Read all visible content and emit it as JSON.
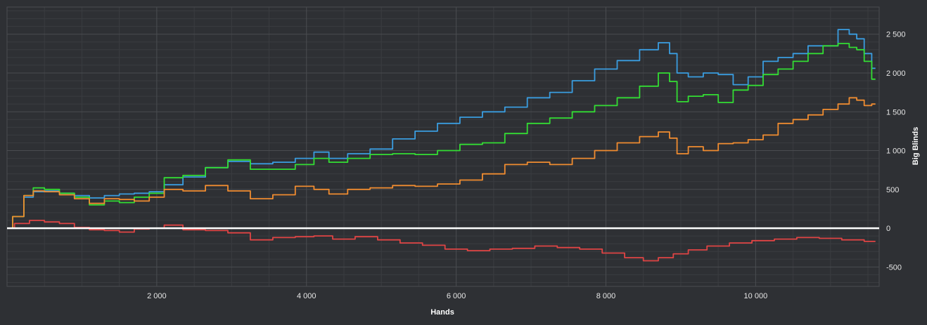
{
  "chart_data": {
    "type": "line",
    "title": "",
    "xlabel": "Hands",
    "ylabel": "Big Blinds",
    "xlim": [
      0,
      11650
    ],
    "ylim": [
      -750,
      2850
    ],
    "x_ticks": [
      2000,
      4000,
      6000,
      8000,
      10000
    ],
    "x_tick_labels": [
      "2 000",
      "4 000",
      "6 000",
      "8 000",
      "10 000"
    ],
    "y_ticks": [
      -500,
      0,
      500,
      1000,
      1500,
      2000,
      2500
    ],
    "y_tick_labels": [
      "-500",
      "0",
      "500",
      "1 000",
      "1 500",
      "2 000",
      "2 500"
    ],
    "grid": true,
    "legend": "none",
    "zero_line_color": "#ffffff",
    "background_color": "#2e3034",
    "grid_color": "#4a4c50",
    "series": [
      {
        "color": "#3a9de0",
        "x": [
          0,
          150,
          300,
          400,
          600,
          800,
          1000,
          1200,
          1400,
          1600,
          1800,
          2000,
          2200,
          2500,
          2800,
          3100,
          3400,
          3700,
          4000,
          4200,
          4400,
          4700,
          5000,
          5300,
          5600,
          5900,
          6200,
          6500,
          6800,
          7100,
          7400,
          7700,
          8000,
          8300,
          8600,
          8800,
          8900,
          9000,
          9200,
          9400,
          9600,
          9800,
          10000,
          10200,
          10400,
          10600,
          10800,
          11000,
          11200,
          11300,
          11400,
          11500,
          11600
        ],
        "y": [
          0,
          150,
          400,
          470,
          480,
          450,
          420,
          390,
          420,
          440,
          450,
          470,
          560,
          660,
          780,
          860,
          830,
          850,
          900,
          980,
          900,
          960,
          1020,
          1150,
          1250,
          1350,
          1430,
          1500,
          1560,
          1680,
          1750,
          1900,
          2050,
          2160,
          2300,
          2390,
          2250,
          2000,
          1950,
          2000,
          1980,
          1850,
          1950,
          2150,
          2200,
          2250,
          2350,
          2350,
          2560,
          2500,
          2440,
          2250,
          2060
        ]
      },
      {
        "color": "#33dd33",
        "x": [
          0,
          150,
          300,
          400,
          600,
          800,
          1000,
          1200,
          1400,
          1600,
          1800,
          2000,
          2200,
          2500,
          2800,
          3100,
          3400,
          3700,
          4000,
          4200,
          4400,
          4700,
          5000,
          5300,
          5600,
          5900,
          6200,
          6500,
          6800,
          7100,
          7400,
          7700,
          8000,
          8300,
          8600,
          8800,
          8900,
          9000,
          9200,
          9400,
          9600,
          9800,
          10000,
          10200,
          10400,
          10600,
          10800,
          11000,
          11200,
          11300,
          11400,
          11500,
          11600
        ],
        "y": [
          0,
          150,
          420,
          520,
          500,
          450,
          400,
          300,
          350,
          330,
          400,
          450,
          650,
          680,
          780,
          880,
          760,
          760,
          820,
          900,
          850,
          900,
          950,
          960,
          950,
          1000,
          1080,
          1100,
          1220,
          1350,
          1420,
          1500,
          1580,
          1680,
          1830,
          2000,
          1890,
          1630,
          1700,
          1720,
          1620,
          1780,
          1840,
          1980,
          2050,
          2150,
          2250,
          2350,
          2380,
          2330,
          2300,
          2150,
          1920
        ]
      },
      {
        "color": "#f08c30",
        "x": [
          0,
          150,
          300,
          400,
          600,
          800,
          1000,
          1200,
          1400,
          1600,
          1800,
          2000,
          2200,
          2500,
          2800,
          3100,
          3400,
          3700,
          4000,
          4200,
          4400,
          4700,
          5000,
          5300,
          5600,
          5900,
          6200,
          6500,
          6800,
          7100,
          7400,
          7700,
          8000,
          8300,
          8600,
          8800,
          8900,
          9000,
          9200,
          9400,
          9600,
          9800,
          10000,
          10200,
          10400,
          10600,
          10800,
          11000,
          11200,
          11300,
          11400,
          11500,
          11600
        ],
        "y": [
          0,
          150,
          420,
          480,
          470,
          430,
          380,
          320,
          380,
          370,
          350,
          400,
          500,
          480,
          550,
          480,
          380,
          430,
          540,
          500,
          440,
          500,
          520,
          550,
          540,
          570,
          620,
          700,
          820,
          850,
          820,
          900,
          1000,
          1100,
          1180,
          1240,
          1160,
          960,
          1050,
          1000,
          1090,
          1100,
          1140,
          1200,
          1350,
          1400,
          1460,
          1530,
          1600,
          1680,
          1650,
          1580,
          1600
        ]
      },
      {
        "color": "#e04444",
        "x": [
          0,
          200,
          400,
          600,
          800,
          1000,
          1200,
          1400,
          1600,
          1800,
          2000,
          2200,
          2500,
          2800,
          3100,
          3400,
          3700,
          4000,
          4200,
          4500,
          4800,
          5100,
          5400,
          5700,
          6000,
          6300,
          6600,
          6900,
          7200,
          7500,
          7800,
          8100,
          8400,
          8600,
          8800,
          9000,
          9200,
          9500,
          9800,
          10100,
          10400,
          10700,
          11000,
          11300,
          11600
        ],
        "y": [
          0,
          60,
          100,
          80,
          60,
          10,
          -20,
          -30,
          -50,
          -10,
          0,
          40,
          -20,
          -30,
          -60,
          -150,
          -120,
          -110,
          -100,
          -140,
          -110,
          -150,
          -190,
          -220,
          -270,
          -290,
          -270,
          -260,
          -230,
          -250,
          -270,
          -320,
          -380,
          -420,
          -380,
          -330,
          -280,
          -230,
          -190,
          -160,
          -140,
          -120,
          -130,
          -150,
          -170
        ]
      }
    ]
  }
}
